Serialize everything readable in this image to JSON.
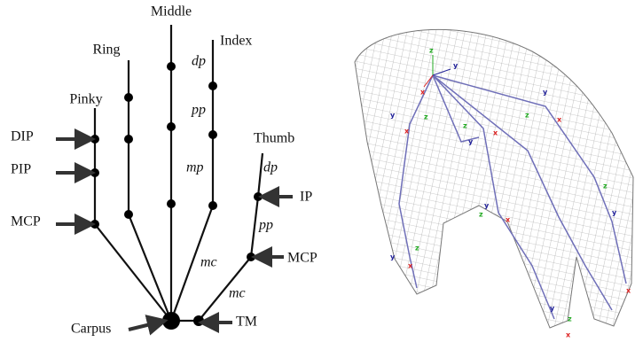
{
  "diagram": {
    "fingers": {
      "middle": "Middle",
      "ring": "Ring",
      "index": "Index",
      "pinky": "Pinky",
      "thumb": "Thumb"
    },
    "joints": {
      "dip": "DIP",
      "pip": "PIP",
      "mcp": "MCP",
      "ip": "IP",
      "thumb_mcp": "MCP",
      "tm": "TM",
      "carpus": "Carpus"
    },
    "segments": {
      "index_dp": "dp",
      "index_pp": "pp",
      "index_mp": "mp",
      "thumb_dp": "dp",
      "thumb_pp": "pp",
      "thumb_mc": "mc",
      "tm_mc": "mc"
    }
  },
  "mesh": {
    "gizmos": [
      [
        "x",
        "y",
        "z"
      ],
      [
        "x",
        "y",
        "z"
      ],
      [
        "x",
        "y",
        "z"
      ],
      [
        "x",
        "y",
        "z"
      ],
      [
        "x",
        "y",
        "z"
      ],
      [
        "x",
        "y",
        "z"
      ],
      [
        "x",
        "y",
        "z"
      ],
      [
        "x",
        "y",
        "z"
      ]
    ]
  }
}
